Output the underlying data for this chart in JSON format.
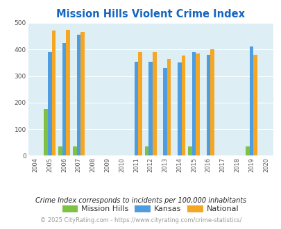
{
  "title": "Mission Hills Violent Crime Index",
  "years": [
    2005,
    2006,
    2007,
    2011,
    2012,
    2013,
    2014,
    2015,
    2016,
    2019
  ],
  "mission_hills": [
    175,
    35,
    35,
    0,
    35,
    0,
    0,
    35,
    0,
    35
  ],
  "kansas": [
    390,
    425,
    455,
    355,
    355,
    330,
    350,
    390,
    380,
    410
  ],
  "national": [
    470,
    475,
    465,
    390,
    390,
    365,
    378,
    385,
    400,
    380
  ],
  "xmin": 2003.5,
  "xmax": 2020.5,
  "ymin": 0,
  "ymax": 500,
  "yticks": [
    0,
    100,
    200,
    300,
    400,
    500
  ],
  "xticks": [
    2004,
    2005,
    2006,
    2007,
    2008,
    2009,
    2010,
    2011,
    2012,
    2013,
    2014,
    2015,
    2016,
    2017,
    2018,
    2019,
    2020
  ],
  "color_mission_hills": "#7dc242",
  "color_kansas": "#4d9de0",
  "color_national": "#f5a623",
  "bg_color": "#ddeef5",
  "bar_width": 0.27,
  "legend_labels": [
    "Mission Hills",
    "Kansas",
    "National"
  ],
  "footnote1": "Crime Index corresponds to incidents per 100,000 inhabitants",
  "footnote2": "© 2025 CityRating.com - https://www.cityrating.com/crime-statistics/",
  "title_color": "#1565c0",
  "footnote1_color": "#222222",
  "footnote2_color": "#999999"
}
